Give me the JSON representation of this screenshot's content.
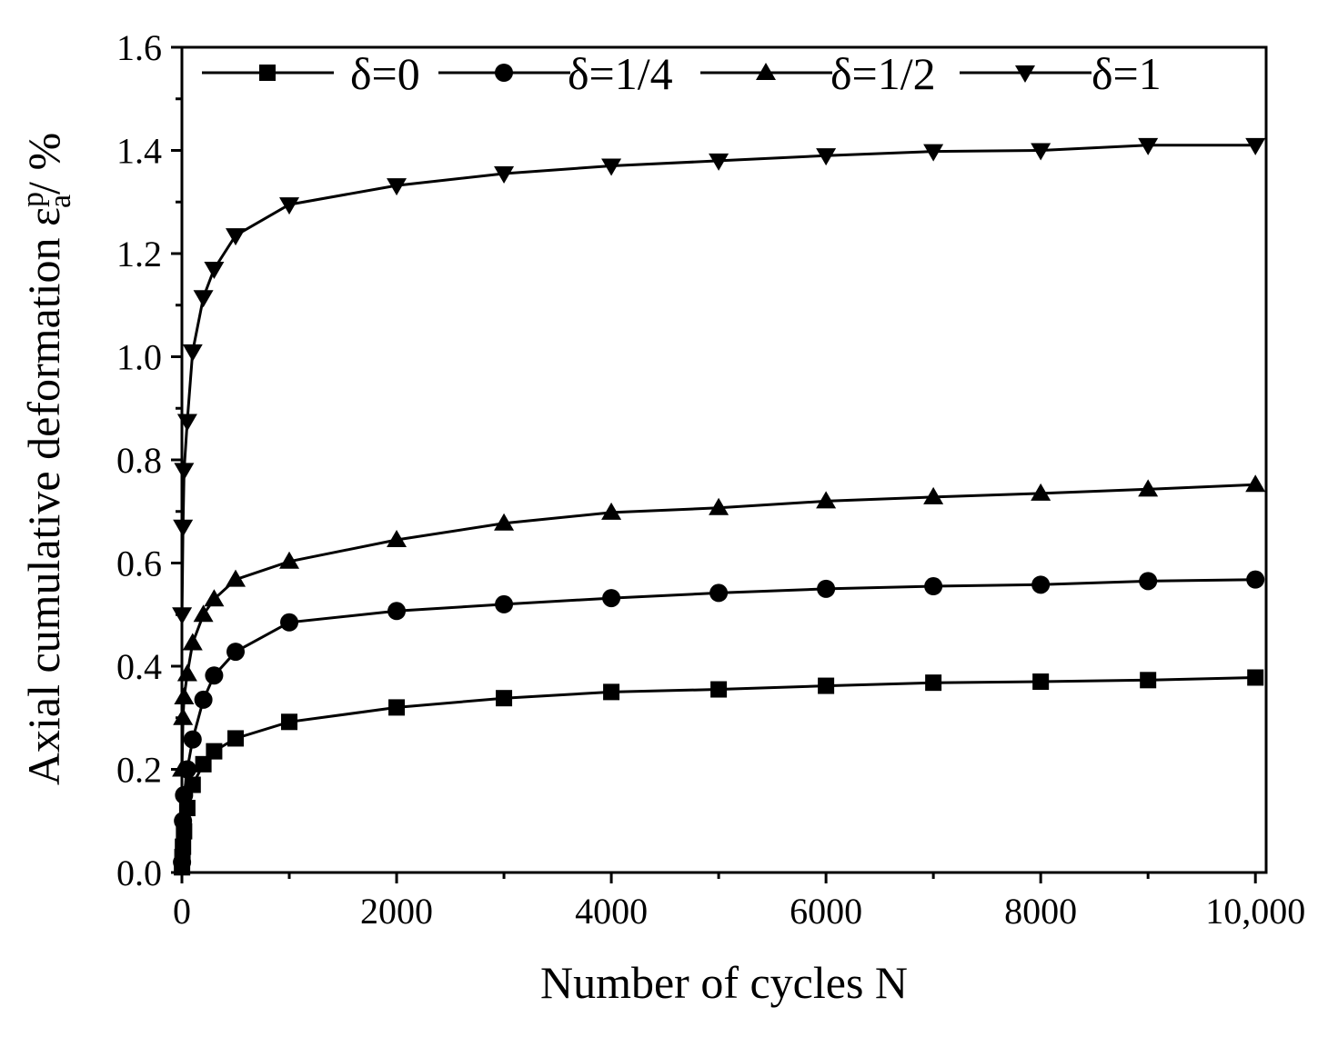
{
  "chart_data": {
    "type": "line",
    "xlabel": "Number of cycles N",
    "ylabel": {
      "prefix": "Axial cumulative deformation ε",
      "sup": "p",
      "sub": "a",
      "suffix": "/ %"
    },
    "xlim": [
      0,
      10100
    ],
    "ylim": [
      0,
      1.6
    ],
    "xticks": [
      0,
      2000,
      4000,
      6000,
      8000,
      10000
    ],
    "xtick_labels": [
      "0",
      "2000",
      "4000",
      "6000",
      "8000",
      "10,000"
    ],
    "yticks": [
      0,
      0.2,
      0.4,
      0.6,
      0.8,
      1.0,
      1.2,
      1.4,
      1.6
    ],
    "ytick_labels": [
      "0.0",
      "0.2",
      "0.4",
      "0.6",
      "0.8",
      "1.0",
      "1.2",
      "1.4",
      "1.6"
    ],
    "grid": false,
    "legend_position": "top",
    "series": [
      {
        "name": "δ=0",
        "marker": "square",
        "x": [
          1,
          5,
          10,
          20,
          50,
          100,
          200,
          300,
          500,
          1000,
          2000,
          3000,
          4000,
          5000,
          6000,
          7000,
          8000,
          9000,
          10000
        ],
        "y": [
          0.01,
          0.03,
          0.05,
          0.08,
          0.125,
          0.17,
          0.21,
          0.235,
          0.26,
          0.292,
          0.32,
          0.338,
          0.35,
          0.355,
          0.362,
          0.368,
          0.37,
          0.373,
          0.378
        ]
      },
      {
        "name": "δ=1/4",
        "marker": "circle",
        "x": [
          1,
          10,
          20,
          50,
          100,
          200,
          300,
          500,
          1000,
          2000,
          3000,
          4000,
          5000,
          6000,
          7000,
          8000,
          9000,
          10000
        ],
        "y": [
          0.02,
          0.1,
          0.15,
          0.2,
          0.258,
          0.335,
          0.382,
          0.428,
          0.485,
          0.507,
          0.52,
          0.532,
          0.542,
          0.55,
          0.555,
          0.558,
          0.565,
          0.568
        ]
      },
      {
        "name": "δ=1/2",
        "marker": "triangle-up",
        "x": [
          1,
          10,
          20,
          50,
          100,
          200,
          300,
          500,
          1000,
          2000,
          3000,
          4000,
          5000,
          6000,
          7000,
          8000,
          9000,
          10000
        ],
        "y": [
          0.2,
          0.3,
          0.34,
          0.385,
          0.445,
          0.5,
          0.53,
          0.568,
          0.603,
          0.645,
          0.677,
          0.698,
          0.707,
          0.72,
          0.728,
          0.735,
          0.743,
          0.752
        ]
      },
      {
        "name": "δ=1",
        "marker": "triangle-down",
        "x": [
          1,
          10,
          20,
          50,
          100,
          200,
          300,
          500,
          1000,
          2000,
          3000,
          4000,
          5000,
          6000,
          7000,
          8000,
          9000,
          10000
        ],
        "y": [
          0.5,
          0.67,
          0.78,
          0.875,
          1.01,
          1.115,
          1.17,
          1.235,
          1.295,
          1.332,
          1.355,
          1.37,
          1.38,
          1.39,
          1.398,
          1.4,
          1.41,
          1.41
        ]
      }
    ]
  }
}
